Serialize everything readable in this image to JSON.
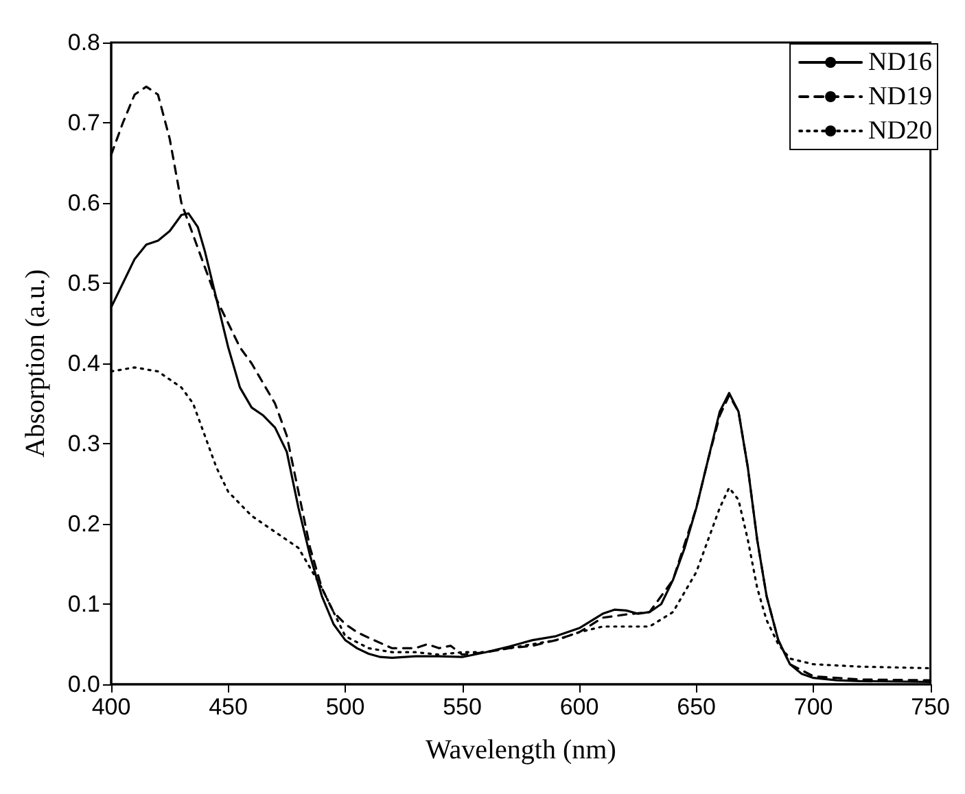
{
  "chart_data": {
    "type": "line",
    "xlabel": "Wavelength (nm)",
    "ylabel": "Absorption (a.u.)",
    "xlim": [
      400,
      750
    ],
    "xticks": [
      400,
      450,
      500,
      550,
      600,
      650,
      700,
      750
    ],
    "ylim": [
      0,
      0.8
    ],
    "yticks": [
      {
        "value": 0,
        "label": "0.0"
      },
      0.1,
      0.2,
      0.3,
      0.4,
      0.5,
      0.6,
      0.7,
      0.8
    ],
    "grid": false,
    "legend": "top right",
    "marker": "none",
    "series": [
      {
        "name": "ND16",
        "color": "#000000",
        "line_style": "solid",
        "x": [
          400,
          405,
          410,
          415,
          420,
          425,
          430,
          433,
          437,
          440,
          445,
          450,
          455,
          460,
          465,
          470,
          475,
          480,
          485,
          490,
          495,
          500,
          505,
          510,
          515,
          520,
          530,
          540,
          550,
          560,
          570,
          580,
          590,
          600,
          610,
          615,
          620,
          625,
          630,
          635,
          640,
          645,
          650,
          655,
          660,
          664,
          668,
          672,
          676,
          680,
          685,
          690,
          695,
          700,
          710,
          720,
          750
        ],
        "values": [
          0.47,
          0.5,
          0.53,
          0.548,
          0.553,
          0.565,
          0.585,
          0.587,
          0.57,
          0.54,
          0.48,
          0.42,
          0.37,
          0.345,
          0.335,
          0.32,
          0.29,
          0.22,
          0.16,
          0.11,
          0.075,
          0.055,
          0.045,
          0.038,
          0.034,
          0.033,
          0.035,
          0.035,
          0.034,
          0.04,
          0.047,
          0.055,
          0.06,
          0.07,
          0.088,
          0.093,
          0.092,
          0.088,
          0.09,
          0.1,
          0.13,
          0.17,
          0.22,
          0.28,
          0.34,
          0.363,
          0.34,
          0.27,
          0.18,
          0.11,
          0.055,
          0.025,
          0.013,
          0.008,
          0.005,
          0.004,
          0.003
        ]
      },
      {
        "name": "ND19",
        "color": "#000000",
        "line_style": "dashed",
        "x": [
          400,
          405,
          410,
          415,
          420,
          425,
          430,
          435,
          440,
          445,
          450,
          455,
          460,
          465,
          470,
          475,
          480,
          485,
          490,
          495,
          500,
          505,
          510,
          520,
          530,
          535,
          540,
          545,
          550,
          560,
          570,
          580,
          590,
          600,
          610,
          620,
          630,
          640,
          650,
          655,
          660,
          664,
          668,
          672,
          676,
          680,
          685,
          690,
          700,
          720,
          750
        ],
        "values": [
          0.66,
          0.7,
          0.735,
          0.745,
          0.735,
          0.68,
          0.6,
          0.56,
          0.52,
          0.48,
          0.45,
          0.42,
          0.4,
          0.375,
          0.35,
          0.31,
          0.24,
          0.17,
          0.12,
          0.09,
          0.075,
          0.065,
          0.058,
          0.045,
          0.045,
          0.05,
          0.045,
          0.048,
          0.037,
          0.04,
          0.045,
          0.048,
          0.055,
          0.065,
          0.083,
          0.087,
          0.09,
          0.13,
          0.22,
          0.28,
          0.335,
          0.36,
          0.34,
          0.27,
          0.18,
          0.11,
          0.055,
          0.025,
          0.01,
          0.006,
          0.005
        ]
      },
      {
        "name": "ND20",
        "color": "#000000",
        "line_style": "dotted",
        "x": [
          400,
          410,
          420,
          430,
          435,
          440,
          445,
          450,
          460,
          470,
          480,
          490,
          500,
          510,
          520,
          530,
          540,
          550,
          560,
          570,
          580,
          590,
          600,
          610,
          620,
          630,
          640,
          650,
          655,
          660,
          664,
          668,
          672,
          676,
          680,
          685,
          690,
          700,
          720,
          750
        ],
        "values": [
          0.39,
          0.395,
          0.39,
          0.37,
          0.35,
          0.31,
          0.27,
          0.24,
          0.21,
          0.19,
          0.17,
          0.12,
          0.06,
          0.045,
          0.04,
          0.04,
          0.037,
          0.04,
          0.04,
          0.045,
          0.05,
          0.055,
          0.065,
          0.072,
          0.072,
          0.072,
          0.09,
          0.14,
          0.18,
          0.22,
          0.245,
          0.23,
          0.18,
          0.12,
          0.08,
          0.05,
          0.032,
          0.025,
          0.022,
          0.02
        ]
      }
    ]
  }
}
